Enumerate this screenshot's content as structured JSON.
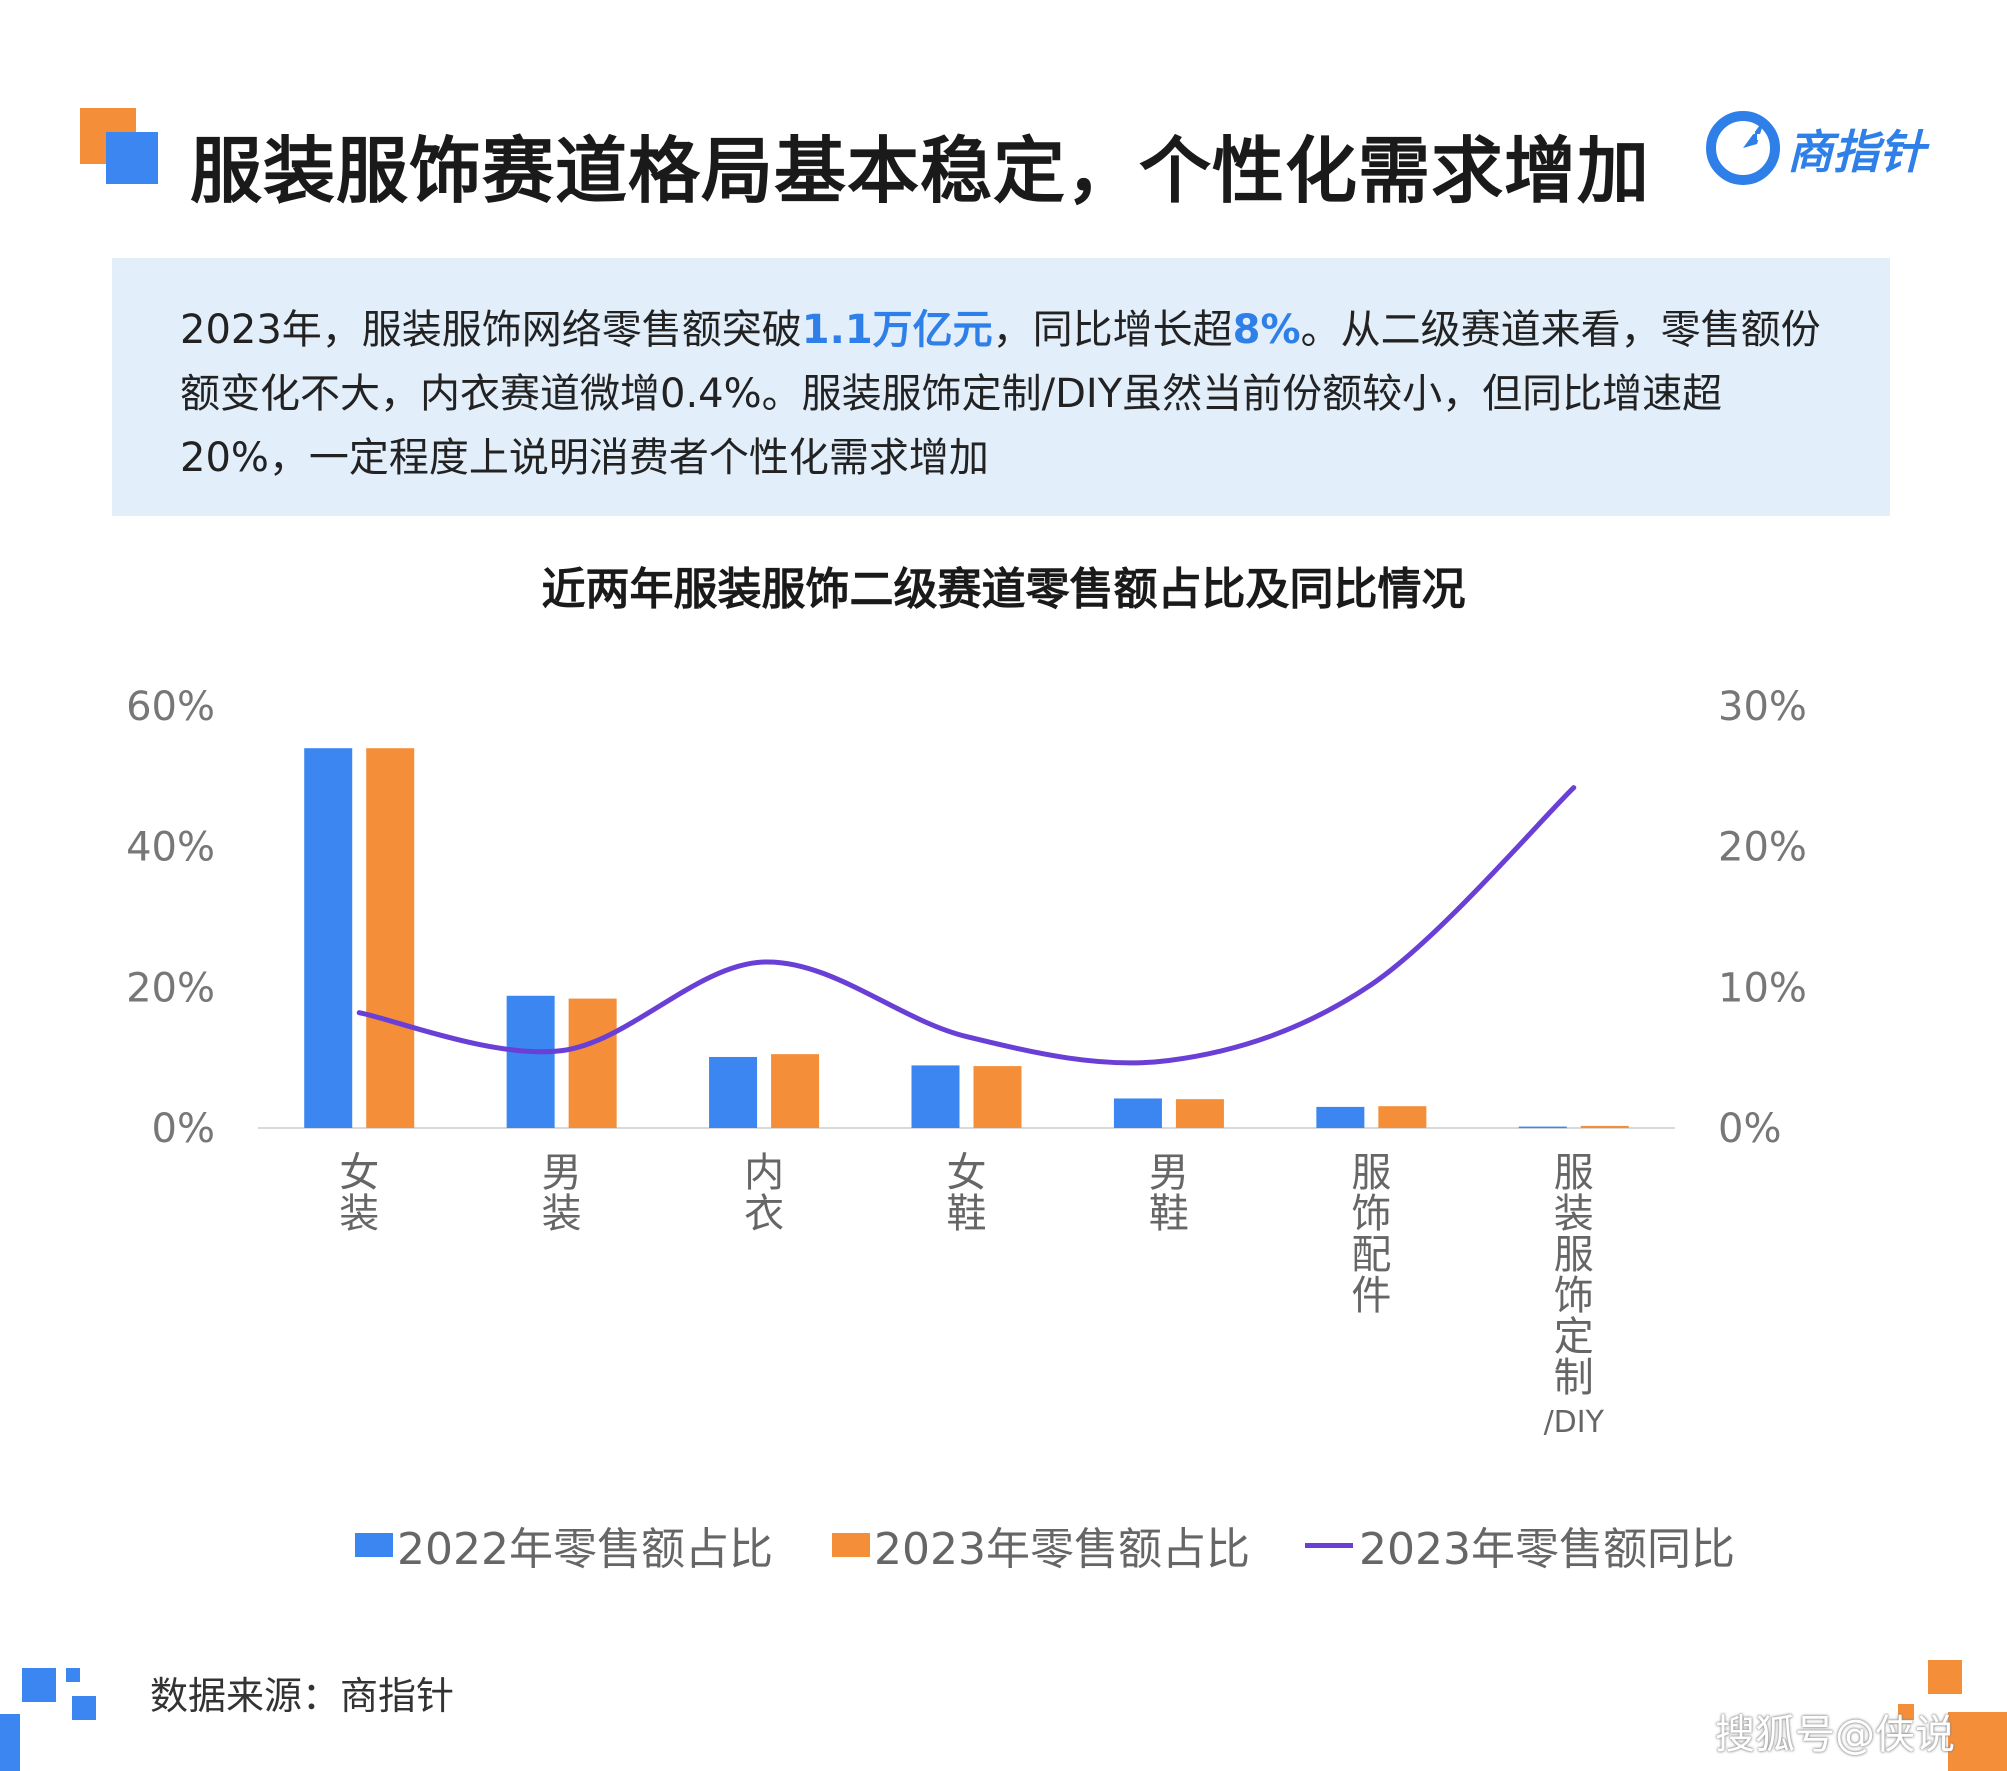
{
  "title": "服装服饰赛道格局基本稳定，个性化需求增加",
  "logo": {
    "text": "商指针",
    "icon": "compass-logo-icon"
  },
  "summary": {
    "line1_pre": "2023年，服装服饰网络零售额突破",
    "line1_hl1": "1.1万亿元",
    "line1_mid": "，同比增长超",
    "line1_hl2": "8%",
    "line1_post": "。从二级赛道来看，零售额份额变化不大，内衣赛道微增0.4%。服装服饰定制/DIY虽然当前份额较小，但同比增速超20%，一定程度上说明消费者个性化需求增加"
  },
  "colors": {
    "blue": "#3b86f0",
    "orange": "#f58e38",
    "purple": "#6a3fd6",
    "accent": "#2f7fe8"
  },
  "chart_data": {
    "type": "bar",
    "title": "近两年服装服饰二级赛道零售额占比及同比情况",
    "categories": [
      "女装",
      "男装",
      "内衣",
      "女鞋",
      "男鞋",
      "服饰配件",
      "服装服饰定制/DIY"
    ],
    "series": [
      {
        "name": "2022年零售额占比",
        "type": "bar",
        "axis": "left",
        "values": [
          54,
          18.8,
          10.1,
          8.9,
          4.2,
          3.0,
          0.2
        ]
      },
      {
        "name": "2023年零售额占比",
        "type": "bar",
        "axis": "left",
        "values": [
          54,
          18.4,
          10.5,
          8.8,
          4.1,
          3.1,
          0.3
        ]
      },
      {
        "name": "2023年零售额同比",
        "type": "line",
        "axis": "right",
        "smooth": true,
        "values": [
          8.2,
          5.5,
          11.8,
          6.5,
          4.8,
          10.2,
          24.2
        ]
      }
    ],
    "y_left": {
      "ylim": [
        0,
        60
      ],
      "ticks": [
        "0%",
        "20%",
        "40%",
        "60%"
      ]
    },
    "y_right": {
      "ylim": [
        0,
        30
      ],
      "ticks": [
        "0%",
        "10%",
        "20%",
        "30%"
      ]
    },
    "grid": false,
    "legend": "bottom"
  },
  "source": "数据来源：商指针",
  "watermark": "搜狐号@侠说"
}
